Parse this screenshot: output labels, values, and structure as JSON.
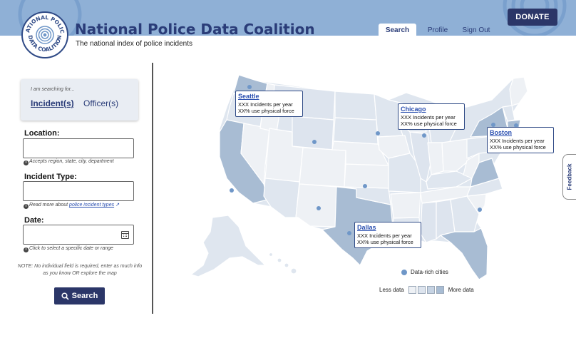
{
  "header": {
    "title": "National Police Data Coalition",
    "tagline": "The national index of police incidents",
    "logo_text_top": "NATIONAL POLICE",
    "logo_text_bottom": "DATA COALITION",
    "nav": [
      {
        "label": "Search",
        "active": true
      },
      {
        "label": "Profile",
        "active": false
      },
      {
        "label": "Sign Out",
        "active": false
      }
    ],
    "donate_label": "DONATE"
  },
  "search": {
    "prompt": "I am searching for...",
    "toggle_incidents": "Incident(s)",
    "toggle_officers": "Officer(s)",
    "location_label": "Location:",
    "location_value": "",
    "location_hint": "Accepts region, state, city, department",
    "incident_type_label": "Incident Type:",
    "incident_type_value": "",
    "incident_hint_prefix": "Read more about ",
    "incident_hint_link": "police incident types",
    "date_label": "Date:",
    "date_value": "",
    "date_hint": "Click to select a specific date or range",
    "note": "NOTE: No individual field is required, enter as much info as you know OR explore the map",
    "search_button": "Search"
  },
  "map": {
    "callouts": [
      {
        "city": "Seattle",
        "line1": "XXX Incidents per year",
        "line2": "XX% use physical force"
      },
      {
        "city": "Chicago",
        "line1": "XXX Incidents per year",
        "line2": "XX% use physical force"
      },
      {
        "city": "Boston",
        "line1": "XXX Incidents per year",
        "line2": "XX% use physical force"
      },
      {
        "city": "Dallas",
        "line1": "XXX Incidents per year",
        "line2": "XX% use physical force"
      }
    ],
    "legend": {
      "dot_label": "Data-rich cities",
      "less_label": "Less data",
      "more_label": "More data",
      "scale_colors": [
        "#eef1f5",
        "#dde4ee",
        "#c6d3e3",
        "#a8bcd3"
      ]
    }
  },
  "feedback_label": "Feedback",
  "colors": {
    "brand_dark": "#2b3668",
    "header_bg": "#8fb0d6",
    "link": "#2a4fb0"
  }
}
